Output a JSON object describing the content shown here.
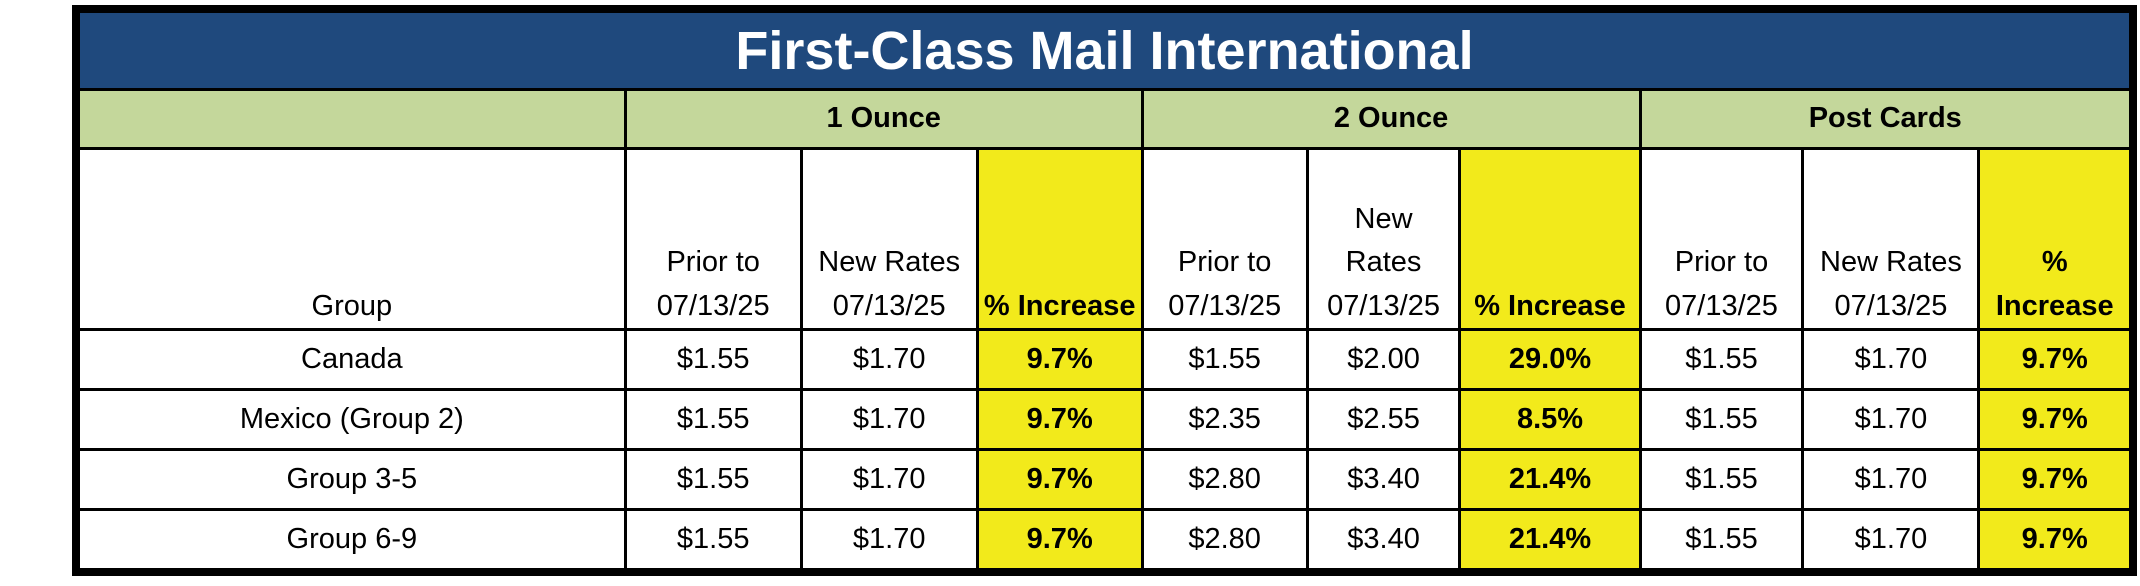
{
  "title": "First-Class Mail International",
  "column_groups": [
    "1 Ounce",
    "2 Ounce",
    "Post Cards"
  ],
  "headers": {
    "group": "Group",
    "prior_line1": "Prior to",
    "prior_line2": "07/13/25",
    "new_line1": "New Rates",
    "new_line2": "07/13/25",
    "new_mid_line1": "New",
    "new_mid_line2": "Rates",
    "new_mid_line3": "07/13/25",
    "pct": "% Increase",
    "pct_line1": "%",
    "pct_line2": "Increase"
  },
  "rows": [
    {
      "group": "Canada",
      "one_prior": "$1.55",
      "one_new": "$1.70",
      "one_pct": "9.7%",
      "two_prior": "$1.55",
      "two_new": "$2.00",
      "two_pct": "29.0%",
      "pc_prior": "$1.55",
      "pc_new": "$1.70",
      "pc_pct": "9.7%"
    },
    {
      "group": "Mexico (Group 2)",
      "one_prior": "$1.55",
      "one_new": "$1.70",
      "one_pct": "9.7%",
      "two_prior": "$2.35",
      "two_new": "$2.55",
      "two_pct": "8.5%",
      "pc_prior": "$1.55",
      "pc_new": "$1.70",
      "pc_pct": "9.7%"
    },
    {
      "group": "Group 3-5",
      "one_prior": "$1.55",
      "one_new": "$1.70",
      "one_pct": "9.7%",
      "two_prior": "$2.80",
      "two_new": "$3.40",
      "two_pct": "21.4%",
      "pc_prior": "$1.55",
      "pc_new": "$1.70",
      "pc_pct": "9.7%"
    },
    {
      "group": "Group 6-9",
      "one_prior": "$1.55",
      "one_new": "$1.70",
      "one_pct": "9.7%",
      "two_prior": "$2.80",
      "two_new": "$3.40",
      "two_pct": "21.4%",
      "pc_prior": "$1.55",
      "pc_new": "$1.70",
      "pc_pct": "9.7%"
    }
  ],
  "colors": {
    "title_bg": "#1f497d",
    "group_header_bg": "#c4d79b",
    "highlight": "#f2ea1b"
  }
}
